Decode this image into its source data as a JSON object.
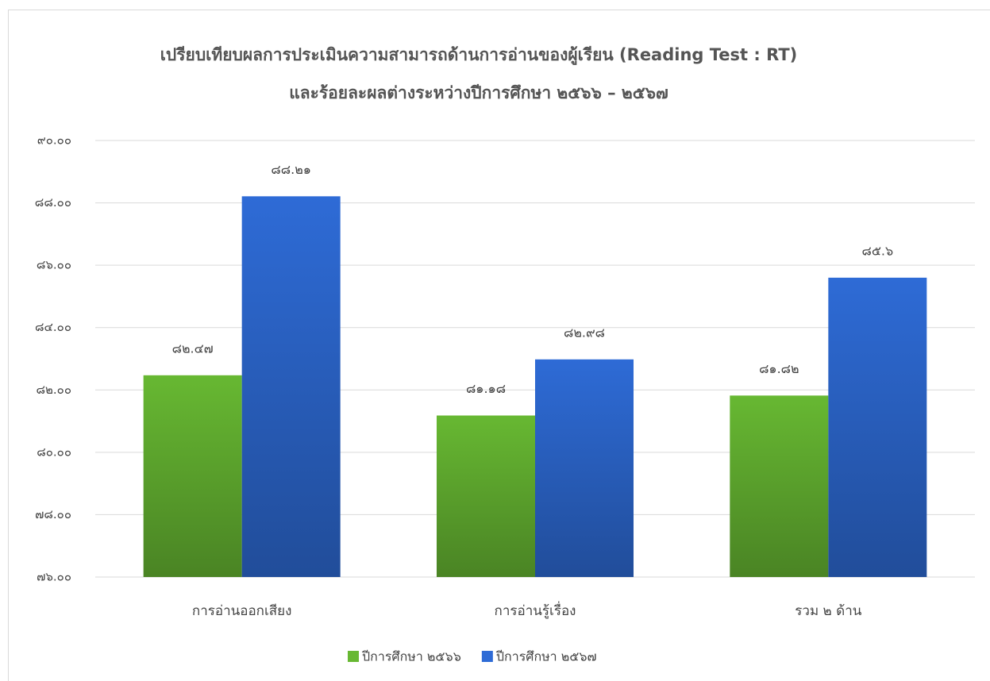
{
  "chart_data": {
    "type": "bar",
    "title": "เปรียบเทียบผลการประเมินความสามารถด้านการอ่านของผู้เรียน   (Reading Test : RT)",
    "subtitle": "และร้อยละผลต่างระหว่างปีการศึกษา ๒๕๖๖ – ๒๕๖๗",
    "categories": [
      "การอ่านออกเสียง",
      "การอ่านรู้เรื่อง",
      "รวม ๒ ด้าน"
    ],
    "series": [
      {
        "name": "ปีการศึกษา ๒๕๖๖",
        "color": "#67b832",
        "values": [
          82.47,
          81.18,
          81.82
        ],
        "value_labels": [
          "๘๒.๔๗",
          "๘๑.๑๘",
          "๘๑.๘๒"
        ]
      },
      {
        "name": "ปีการศึกษา ๒๕๖๗",
        "color": "#2e6bd6",
        "values": [
          88.21,
          82.98,
          85.6
        ],
        "value_labels": [
          "๘๘.๒๑",
          "๘๒.๙๘",
          "๘๕.๖"
        ]
      }
    ],
    "ylim": [
      76,
      90
    ],
    "yticks": [
      {
        "value": 76,
        "label": "๗๖.๐๐"
      },
      {
        "value": 78,
        "label": "๗๘.๐๐"
      },
      {
        "value": 80,
        "label": "๘๐.๐๐"
      },
      {
        "value": 82,
        "label": "๘๒.๐๐"
      },
      {
        "value": 84,
        "label": "๘๔.๐๐"
      },
      {
        "value": 86,
        "label": "๘๖.๐๐"
      },
      {
        "value": 88,
        "label": "๘๘.๐๐"
      },
      {
        "value": 90,
        "label": "๙๐.๐๐"
      }
    ],
    "grid": true,
    "legend": "bottom"
  }
}
